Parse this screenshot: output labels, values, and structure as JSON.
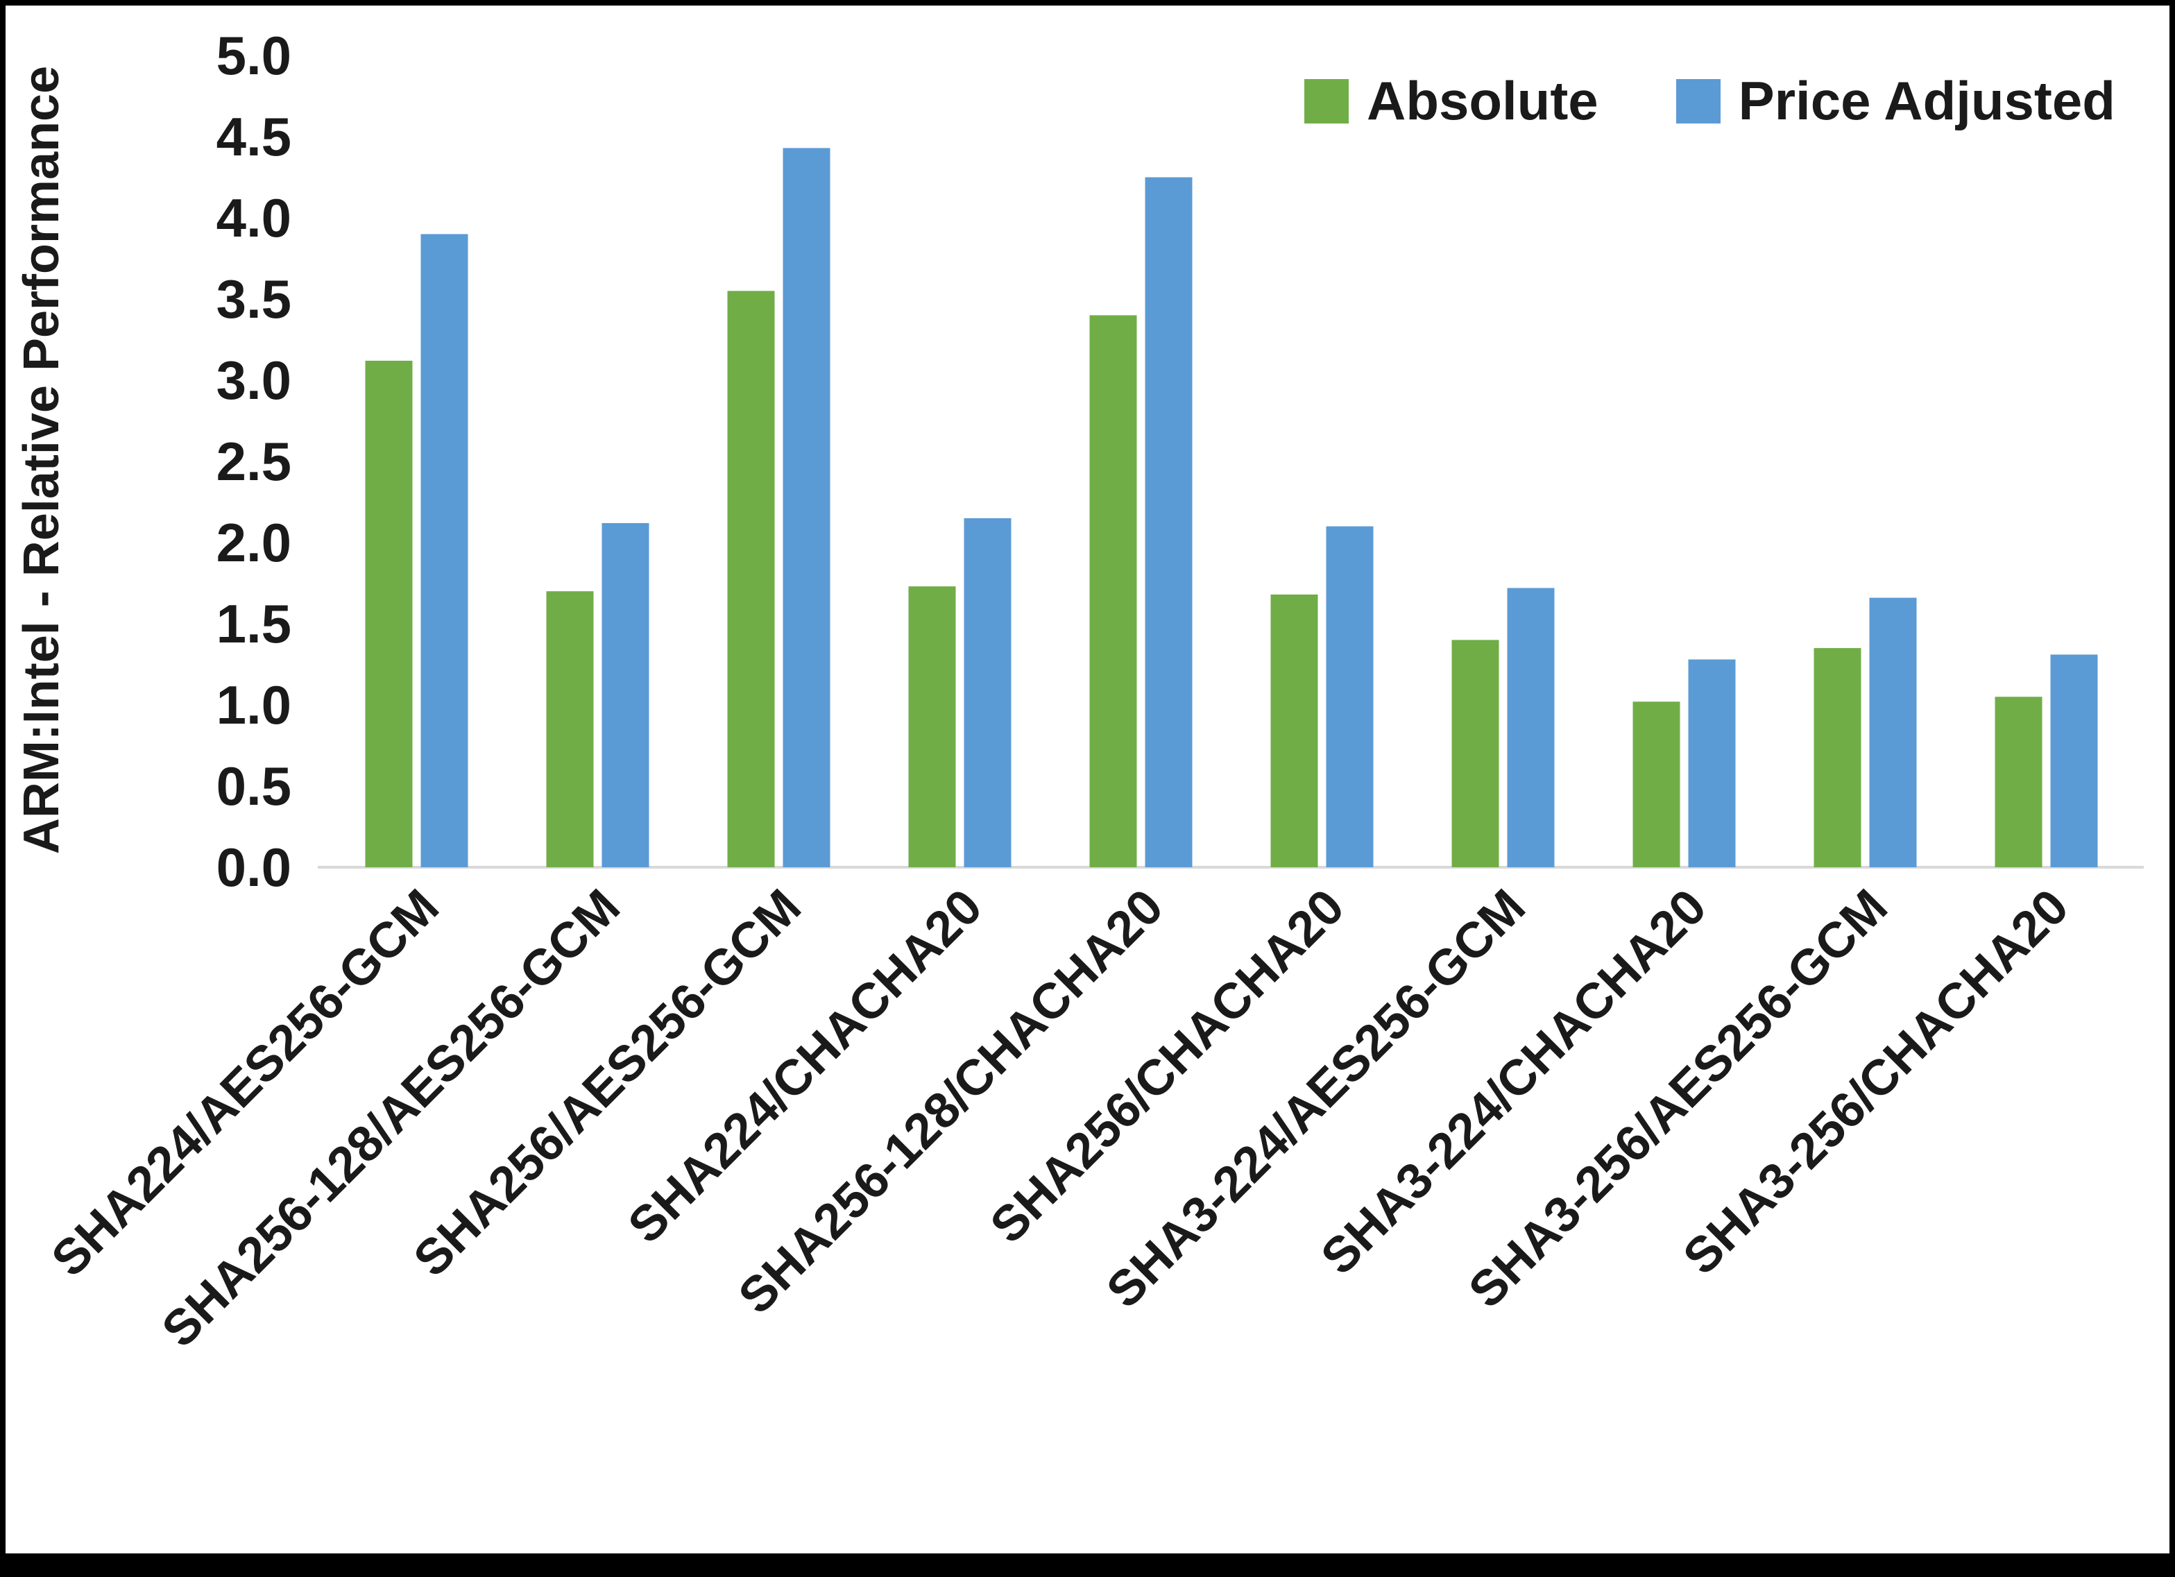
{
  "chart_data": {
    "type": "bar",
    "title": "",
    "ylabel": "ARM:Intel - Relative Performance",
    "xlabel": "",
    "ylim": [
      0,
      5
    ],
    "ytick_step": 0.5,
    "grid": false,
    "legend_position": "top-right",
    "categories": [
      "SHA224/AES256-GCM",
      "SHA256-128/AES256-GCM",
      "SHA256/AES256-GCM",
      "SHA224/CHACHA20",
      "SHA256-128/CHACHA20",
      "SHA256/CHACHA20",
      "SHA3-224/AES256-GCM",
      "SHA3-224/CHACHA20",
      "SHA3-256/AES256-GCM",
      "SHA3-256/CHACHA20"
    ],
    "series": [
      {
        "name": "Absolute",
        "color": "#70AD47",
        "values": [
          3.12,
          1.7,
          3.55,
          1.73,
          3.4,
          1.68,
          1.4,
          1.02,
          1.35,
          1.05
        ]
      },
      {
        "name": "Price Adjusted",
        "color": "#5B9BD5",
        "values": [
          3.9,
          2.12,
          4.43,
          2.15,
          4.25,
          2.1,
          1.72,
          1.28,
          1.66,
          1.31
        ]
      }
    ]
  },
  "colors": {
    "axis_line": "#D9D9D9",
    "text": "#1A1A1A",
    "background": "#FFFFFF",
    "frame": "#000000"
  },
  "y_tick_labels": [
    "0.0",
    "0.5",
    "1.0",
    "1.5",
    "2.0",
    "2.5",
    "3.0",
    "3.5",
    "4.0",
    "4.5",
    "5.0"
  ]
}
